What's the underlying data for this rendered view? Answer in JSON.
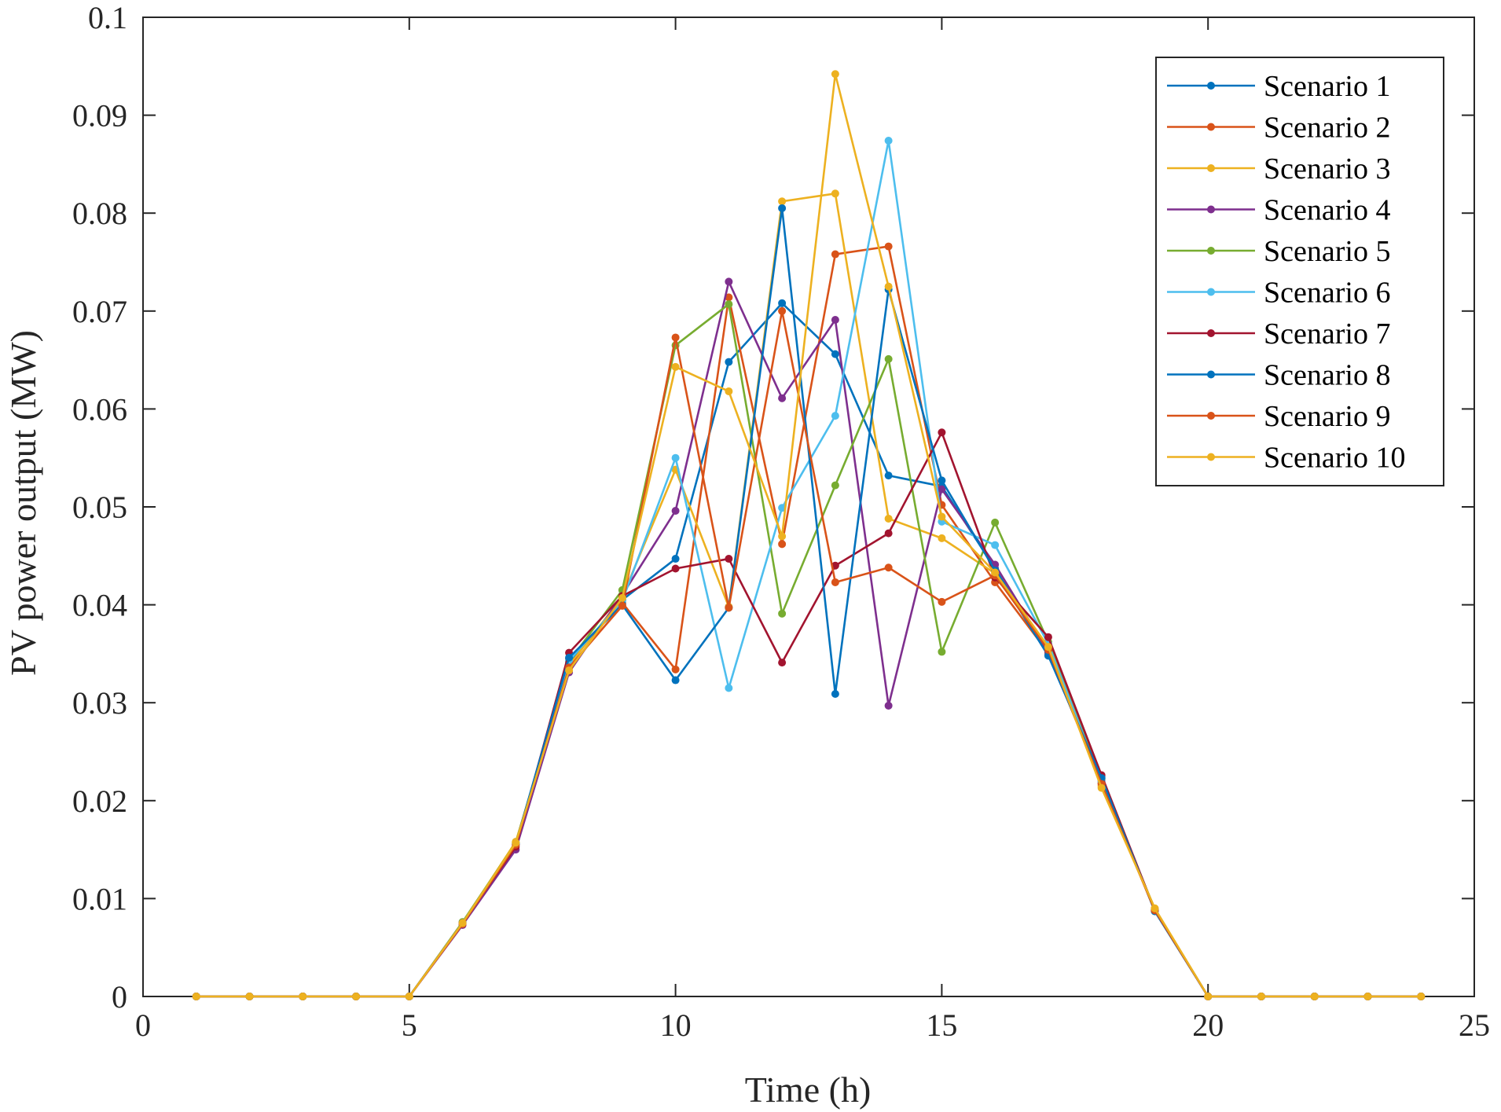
{
  "chart_data": {
    "type": "line",
    "title": "",
    "xlabel": "Time (h)",
    "ylabel": "PV power output (MW)",
    "xlim": [
      0,
      25
    ],
    "ylim": [
      0,
      0.1
    ],
    "xticks": [
      0,
      5,
      10,
      15,
      20,
      25
    ],
    "xtick_labels": [
      "0",
      "5",
      "10",
      "15",
      "20",
      "25"
    ],
    "yticks": [
      0,
      0.01,
      0.02,
      0.03,
      0.04,
      0.05,
      0.06,
      0.07,
      0.08,
      0.09,
      0.1
    ],
    "ytick_labels": [
      "0",
      "0.01",
      "0.02",
      "0.03",
      "0.04",
      "0.05",
      "0.06",
      "0.07",
      "0.08",
      "0.09",
      "0.1"
    ],
    "grid": false,
    "legend_position": "top-right",
    "x": [
      1,
      2,
      3,
      4,
      5,
      6,
      7,
      8,
      9,
      10,
      11,
      12,
      13,
      14,
      15,
      16,
      17,
      18,
      19,
      20,
      21,
      22,
      23,
      24
    ],
    "series": [
      {
        "name": "Scenario 1",
        "color": "#0072BD",
        "values": [
          0,
          0,
          0,
          0,
          0,
          0.0075,
          0.0155,
          0.034,
          0.0405,
          0.0447,
          0.0648,
          0.0708,
          0.0656,
          0.0532,
          0.0521,
          0.0437,
          0.0349,
          0.0224,
          0.0088,
          0,
          0,
          0,
          0,
          0
        ]
      },
      {
        "name": "Scenario 2",
        "color": "#D95319",
        "values": [
          0,
          0,
          0,
          0,
          0,
          0.0075,
          0.0155,
          0.0345,
          0.0402,
          0.0334,
          0.0714,
          0.0462,
          0.0758,
          0.0766,
          0.0502,
          0.0423,
          0.0351,
          0.0218,
          0.0089,
          0,
          0,
          0,
          0,
          0
        ]
      },
      {
        "name": "Scenario 3",
        "color": "#EDB120",
        "values": [
          0,
          0,
          0,
          0,
          0,
          0.0075,
          0.0158,
          0.0338,
          0.0408,
          0.0538,
          0.0398,
          0.0812,
          0.082,
          0.0488,
          0.0468,
          0.0432,
          0.0356,
          0.0215,
          0.009,
          0,
          0,
          0,
          0,
          0
        ]
      },
      {
        "name": "Scenario 4",
        "color": "#7E2F8E",
        "values": [
          0,
          0,
          0,
          0,
          0,
          0.0073,
          0.015,
          0.0331,
          0.041,
          0.0496,
          0.073,
          0.0611,
          0.0691,
          0.0297,
          0.0518,
          0.0441,
          0.0352,
          0.022,
          0.0088,
          0,
          0,
          0,
          0,
          0
        ]
      },
      {
        "name": "Scenario 5",
        "color": "#77AC30",
        "values": [
          0,
          0,
          0,
          0,
          0,
          0.0076,
          0.0157,
          0.0342,
          0.0415,
          0.0665,
          0.0707,
          0.0391,
          0.0522,
          0.0651,
          0.0352,
          0.0484,
          0.0362,
          0.0222,
          0.0089,
          0,
          0,
          0,
          0,
          0
        ]
      },
      {
        "name": "Scenario 6",
        "color": "#4DBEEE",
        "values": [
          0,
          0,
          0,
          0,
          0,
          0.0075,
          0.0156,
          0.0343,
          0.0404,
          0.055,
          0.0315,
          0.0499,
          0.0593,
          0.0874,
          0.0485,
          0.0461,
          0.036,
          0.0219,
          0.0089,
          0,
          0,
          0,
          0,
          0
        ]
      },
      {
        "name": "Scenario 7",
        "color": "#A2142F",
        "values": [
          0,
          0,
          0,
          0,
          0,
          0.0075,
          0.0153,
          0.0351,
          0.0409,
          0.0437,
          0.0447,
          0.0341,
          0.044,
          0.0473,
          0.0576,
          0.0428,
          0.0367,
          0.0226,
          0.0088,
          0,
          0,
          0,
          0,
          0
        ]
      },
      {
        "name": "Scenario 8",
        "color": "#0072BD",
        "values": [
          0,
          0,
          0,
          0,
          0,
          0.0075,
          0.0156,
          0.0346,
          0.04,
          0.0323,
          0.0397,
          0.0805,
          0.0309,
          0.0722,
          0.0527,
          0.0435,
          0.0348,
          0.0223,
          0.0087,
          0,
          0,
          0,
          0,
          0
        ]
      },
      {
        "name": "Scenario 9",
        "color": "#D95319",
        "values": [
          0,
          0,
          0,
          0,
          0,
          0.0074,
          0.0155,
          0.0336,
          0.0399,
          0.0673,
          0.0397,
          0.07,
          0.0423,
          0.0438,
          0.0403,
          0.043,
          0.0354,
          0.0217,
          0.0088,
          0,
          0,
          0,
          0,
          0
        ]
      },
      {
        "name": "Scenario 10",
        "color": "#EDB120",
        "values": [
          0,
          0,
          0,
          0,
          0,
          0.0075,
          0.0157,
          0.0333,
          0.0407,
          0.0643,
          0.0618,
          0.047,
          0.0942,
          0.0725,
          0.049,
          0.0433,
          0.0357,
          0.0213,
          0.009,
          0,
          0,
          0,
          0,
          0
        ]
      }
    ]
  }
}
